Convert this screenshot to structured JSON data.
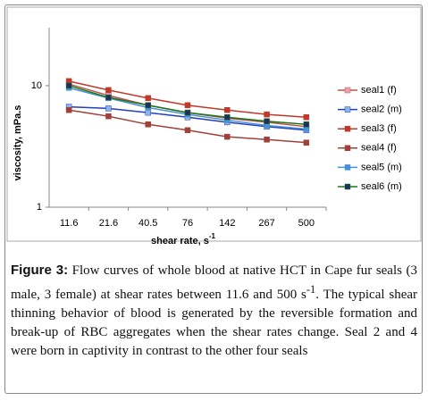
{
  "chart_data": {
    "type": "line",
    "ylabel": "viscosity, mPa.s",
    "xlabel": "shear rate, s",
    "xlabel_sup": "-1",
    "categories": [
      "11.6",
      "21.6",
      "40.5",
      "76",
      "142",
      "267",
      "500"
    ],
    "ylim": [
      1,
      30
    ],
    "yticks": [
      1,
      10
    ],
    "log_y": true,
    "grid": false,
    "legend": "right",
    "series": [
      {
        "name": "seal1 (f)",
        "color": "#c0504d",
        "marker": "#e6a4b4",
        "values": [
          10.3,
          8.3,
          6.9,
          6.0,
          5.4,
          5.0,
          4.6
        ]
      },
      {
        "name": "seal2 (m)",
        "color": "#1f3fbf",
        "marker": "#8fb4e3",
        "values": [
          6.7,
          6.5,
          6.0,
          5.5,
          5.0,
          4.6,
          4.3
        ]
      },
      {
        "name": "seal3 (f)",
        "color": "#c0392b",
        "marker": "#c0392b",
        "values": [
          10.9,
          9.2,
          7.9,
          6.9,
          6.3,
          5.8,
          5.5
        ]
      },
      {
        "name": "seal4 (f)",
        "color": "#a0403a",
        "marker": "#a0403a",
        "values": [
          6.3,
          5.6,
          4.8,
          4.3,
          3.8,
          3.6,
          3.4
        ]
      },
      {
        "name": "seal5 (m)",
        "color": "#4a90d9",
        "marker": "#4a90d9",
        "values": [
          9.6,
          7.9,
          6.6,
          5.8,
          5.2,
          4.7,
          4.4
        ]
      },
      {
        "name": "seal6 (m)",
        "color": "#1a7a1a",
        "marker": "#1f2f5f",
        "values": [
          10.0,
          8.0,
          6.9,
          6.0,
          5.5,
          5.1,
          4.8
        ]
      }
    ]
  },
  "caption": {
    "label": "Figure 3:",
    "text_before": " Flow curves of whole blood at native HCT in Cape fur seals (3 male, 3 female) at shear rates between 11.6 and 500 s",
    "sup": "-1",
    "text_after": ". The typical shear thinning behavior of blood is generated by the reversible formation and break-up of RBC aggregates when the shear rates change. Seal 2 and 4 were born in captivity in contrast to the other four seals"
  }
}
